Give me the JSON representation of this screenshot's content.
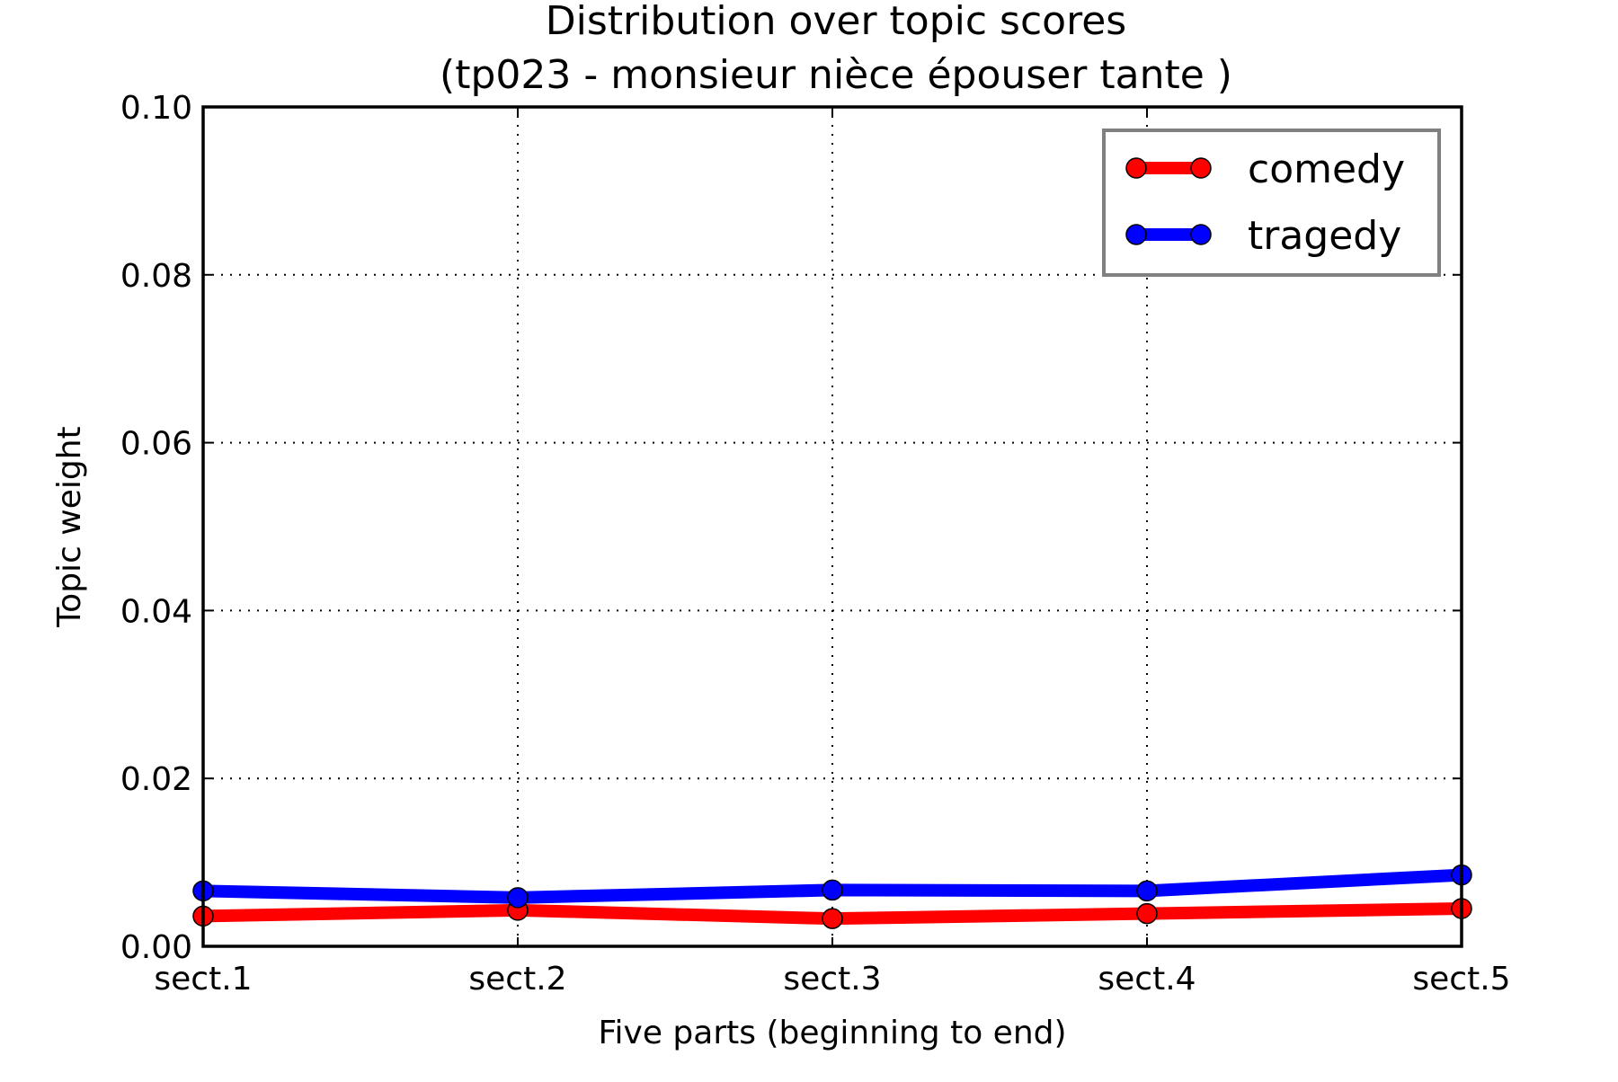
{
  "chart_data": {
    "type": "line",
    "title": "Distribution over topic scores",
    "subtitle": "(tp023 - monsieur nièce épouser tante )",
    "xlabel": "Five parts (beginning to end)",
    "ylabel": "Topic weight",
    "categories": [
      "sect.1",
      "sect.2",
      "sect.3",
      "sect.4",
      "sect.5"
    ],
    "ylim": [
      0,
      0.1
    ],
    "yticks": [
      "0.00",
      "0.02",
      "0.04",
      "0.06",
      "0.08",
      "0.10"
    ],
    "grid": true,
    "legend_position": "top-right",
    "series": [
      {
        "name": "comedy",
        "color": "#ff0000",
        "values": [
          0.0036,
          0.0043,
          0.0033,
          0.0039,
          0.0045
        ]
      },
      {
        "name": "tragedy",
        "color": "#0000ff",
        "values": [
          0.0066,
          0.0058,
          0.0067,
          0.0066,
          0.0085
        ]
      }
    ]
  }
}
